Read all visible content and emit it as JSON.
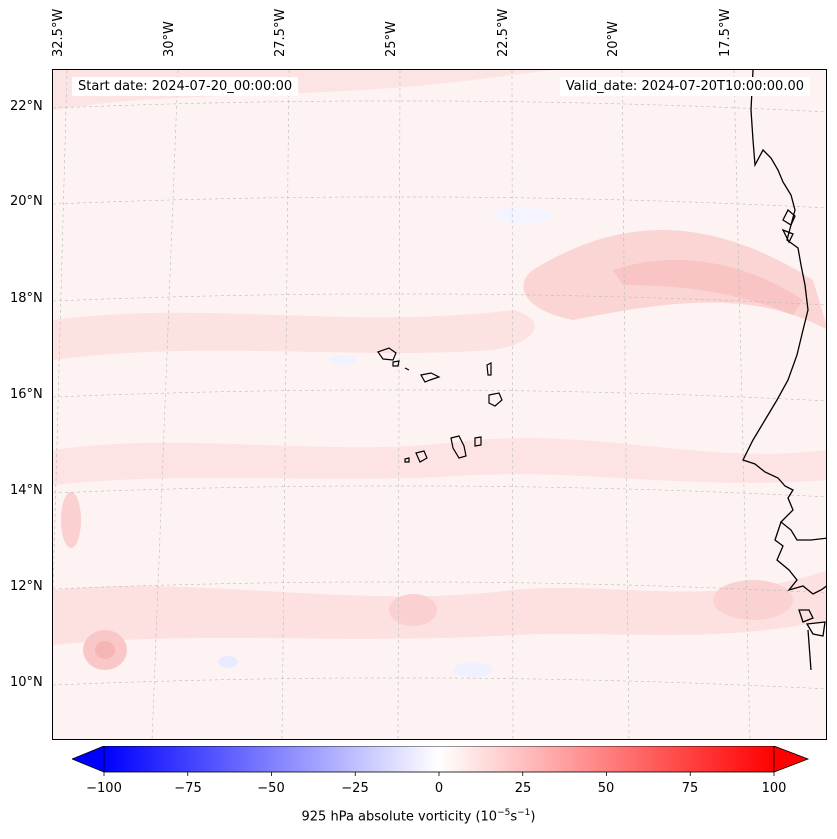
{
  "map": {
    "start_date": "Start date: 2024-07-20_00:00:00",
    "valid_date": "Valid_date: 2024-07-20T10:00:00.00",
    "longitude_labels": [
      "32.5°W",
      "30°W",
      "27.5°W",
      "25°W",
      "22.5°W",
      "20°W",
      "17.5°W"
    ],
    "latitude_labels": [
      "22°N",
      "20°N",
      "18°N",
      "16°N",
      "14°N",
      "12°N",
      "10°N"
    ],
    "gridlines": true,
    "field_colors": {
      "background": "#fdf3f3",
      "light_red": "#fde0e0",
      "medium_red": "#fbcccc",
      "light_blue": "#eef0ff"
    }
  },
  "colorbar": {
    "ticks": [
      "−100",
      "−75",
      "−50",
      "−25",
      "0",
      "25",
      "50",
      "75",
      "100"
    ],
    "label_prefix": "925 hPa absolute vorticity (10",
    "label_exp1": "−5",
    "label_mid": "s",
    "label_exp2": "−1",
    "label_suffix": ")",
    "min_color": "#0000ff",
    "mid_color": "#ffffff",
    "max_color": "#ff0000"
  }
}
